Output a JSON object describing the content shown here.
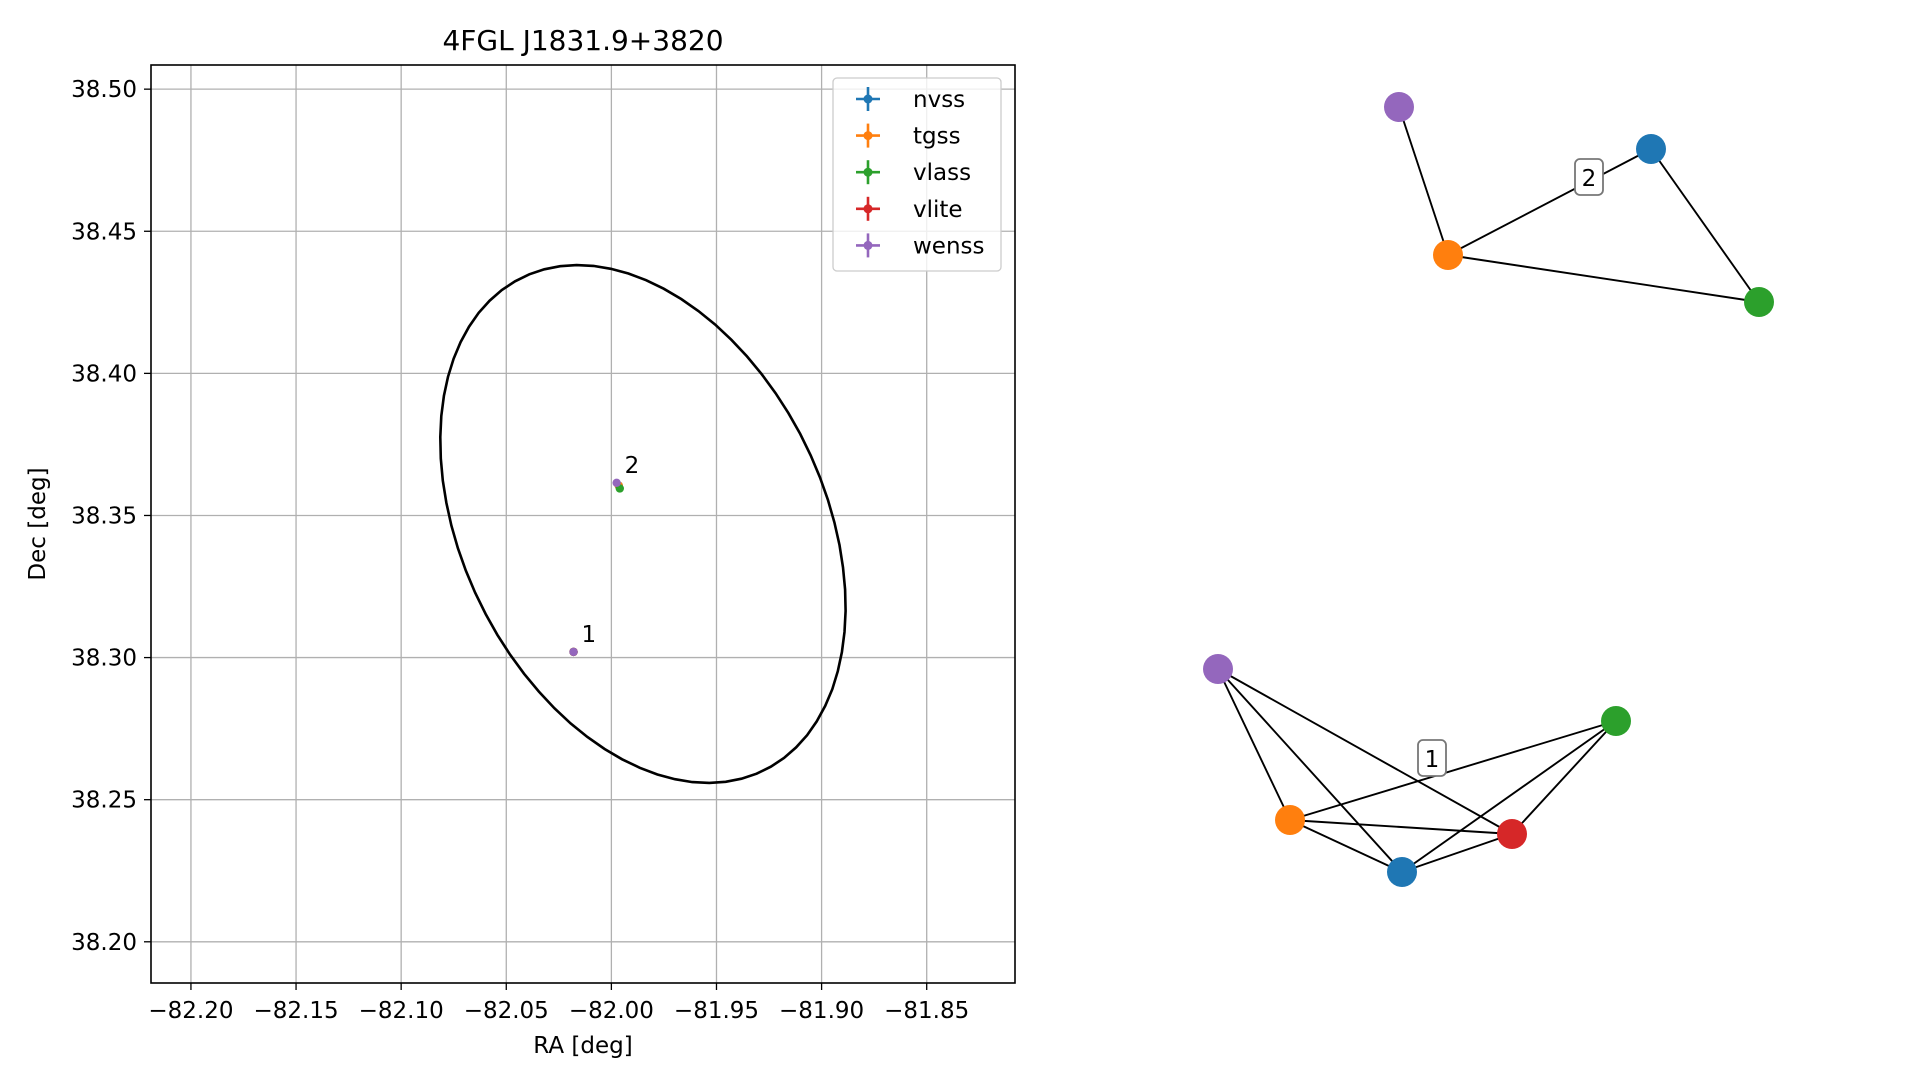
{
  "chart_data": [
    {
      "type": "scatter",
      "title": "4FGL J1831.9+3820",
      "xlabel": "RA [deg]",
      "ylabel": "Dec [deg]",
      "xlim": [
        -82.219,
        -81.808
      ],
      "ylim": [
        38.1855,
        38.5085
      ],
      "grid": true,
      "legend_position": "top-right",
      "x_ticks": [
        -82.2,
        -82.15,
        -82.1,
        -82.05,
        -82.0,
        -81.95,
        -81.9,
        -81.85
      ],
      "x_tick_labels": [
        "−82.20",
        "−82.15",
        "−82.10",
        "−82.05",
        "−82.00",
        "−81.95",
        "−81.90",
        "−81.85"
      ],
      "y_ticks": [
        38.2,
        38.25,
        38.3,
        38.35,
        38.4,
        38.45,
        38.5
      ],
      "y_tick_labels": [
        "38.20",
        "38.25",
        "38.30",
        "38.35",
        "38.40",
        "38.45",
        "38.50"
      ],
      "ellipse": {
        "center": [
          -81.985,
          38.347
        ],
        "semi_major": 0.108,
        "semi_minor": 0.077,
        "angle_deg": -40
      },
      "series": [
        {
          "name": "nvss",
          "color": "#1f77b4",
          "points": [
            [
              -82.018,
              38.302
            ],
            [
              -81.9965,
              38.3605
            ]
          ]
        },
        {
          "name": "tgss",
          "color": "#ff7f0e",
          "points": [
            [
              -82.018,
              38.302
            ],
            [
              -81.9965,
              38.3605
            ]
          ]
        },
        {
          "name": "vlass",
          "color": "#2ca02c",
          "points": [
            [
              -82.018,
              38.302
            ],
            [
              -81.996,
              38.3595
            ]
          ]
        },
        {
          "name": "vlite",
          "color": "#d62728",
          "points": [
            [
              -82.018,
              38.302
            ]
          ]
        },
        {
          "name": "wenss",
          "color": "#9467bd",
          "points": [
            [
              -82.018,
              38.302
            ],
            [
              -81.9975,
              38.3615
            ]
          ]
        }
      ],
      "annotations": [
        {
          "text": "1",
          "at": [
            -82.018,
            38.302
          ]
        },
        {
          "text": "2",
          "at": [
            -81.9975,
            38.3615
          ]
        }
      ]
    },
    {
      "type": "network",
      "graphs": [
        {
          "label": "2",
          "nodes": [
            {
              "id": "nvss",
              "color": "#1f77b4"
            },
            {
              "id": "tgss",
              "color": "#ff7f0e"
            },
            {
              "id": "vlass",
              "color": "#2ca02c"
            },
            {
              "id": "wenss",
              "color": "#9467bd"
            }
          ],
          "edges": [
            [
              "wenss",
              "tgss"
            ],
            [
              "tgss",
              "nvss"
            ],
            [
              "tgss",
              "vlass"
            ],
            [
              "nvss",
              "vlass"
            ]
          ]
        },
        {
          "label": "1",
          "nodes": [
            {
              "id": "nvss",
              "color": "#1f77b4"
            },
            {
              "id": "tgss",
              "color": "#ff7f0e"
            },
            {
              "id": "vlass",
              "color": "#2ca02c"
            },
            {
              "id": "vlite",
              "color": "#d62728"
            },
            {
              "id": "wenss",
              "color": "#9467bd"
            }
          ],
          "edges": [
            [
              "wenss",
              "tgss"
            ],
            [
              "wenss",
              "nvss"
            ],
            [
              "wenss",
              "vlite"
            ],
            [
              "tgss",
              "nvss"
            ],
            [
              "tgss",
              "vlite"
            ],
            [
              "tgss",
              "vlass"
            ],
            [
              "nvss",
              "vlite"
            ],
            [
              "nvss",
              "vlass"
            ],
            [
              "vlite",
              "vlass"
            ]
          ]
        }
      ]
    }
  ]
}
